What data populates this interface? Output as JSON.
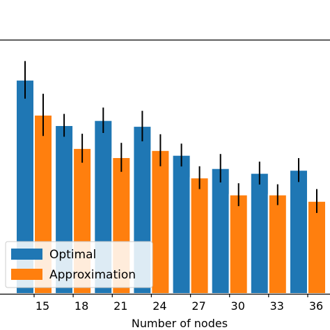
{
  "chart_data": {
    "type": "bar",
    "xlabel": "Number of nodes",
    "ylabel": "",
    "categories": [
      "15",
      "18",
      "21",
      "24",
      "27",
      "30",
      "33",
      "36"
    ],
    "ylim": [
      0,
      1
    ],
    "series": [
      {
        "name": "Optimal",
        "color": "#1f77b4",
        "values": [
          0.842,
          0.663,
          0.683,
          0.66,
          0.546,
          0.494,
          0.475,
          0.487
        ],
        "errors": [
          0.074,
          0.045,
          0.05,
          0.06,
          0.045,
          0.056,
          0.045,
          0.047
        ]
      },
      {
        "name": "Approximation",
        "color": "#ff7f0e",
        "values": [
          0.704,
          0.573,
          0.537,
          0.565,
          0.457,
          0.39,
          0.39,
          0.365
        ],
        "errors": [
          0.083,
          0.057,
          0.057,
          0.063,
          0.045,
          0.045,
          0.041,
          0.047
        ]
      }
    ],
    "legend": {
      "position": "lower-left",
      "entries": [
        "Optimal",
        "Approximation"
      ]
    },
    "grid": false
  }
}
